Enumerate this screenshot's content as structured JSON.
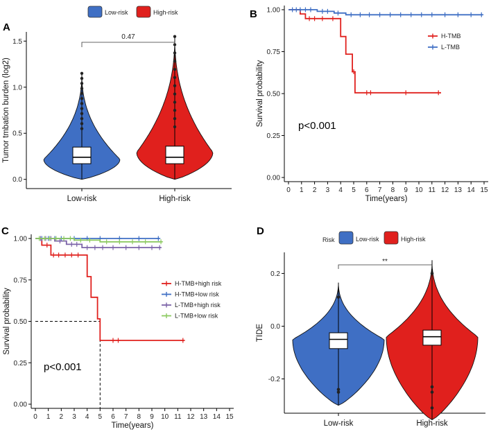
{
  "colors": {
    "low": "#3F6FC4",
    "high": "#E0201D",
    "purple": "#7B63A8",
    "green": "#8CC960"
  },
  "chart_data": [
    {
      "panel": "A",
      "type": "violin",
      "legend": [
        "Low-risk",
        "High-risk"
      ],
      "categories": [
        "Low-risk",
        "High-risk"
      ],
      "ylabel": "Tumor tmbation burden (log2)",
      "ylim": [
        -0.1,
        1.6
      ],
      "yticks": [
        "0.0",
        "0.5",
        "1.0",
        "1.5"
      ],
      "comparison_label": "0.47",
      "series": [
        {
          "name": "Low-risk",
          "median": 0.24,
          "q1": 0.17,
          "q3": 0.35,
          "whisker_low": 0.0,
          "whisker_high": 0.55,
          "min": 0.0,
          "max": 1.15
        },
        {
          "name": "High-risk",
          "median": 0.24,
          "q1": 0.17,
          "q3": 0.36,
          "whisker_low": 0.0,
          "whisker_high": 0.57,
          "min": 0.0,
          "max": 1.55
        }
      ]
    },
    {
      "panel": "B",
      "type": "line",
      "subtype": "kaplan-meier",
      "xlabel": "Time(years)",
      "ylabel": "Survival probability",
      "xticks": [
        "0",
        "1",
        "2",
        "3",
        "4",
        "5",
        "6",
        "7",
        "8",
        "9",
        "10",
        "11",
        "12",
        "13",
        "14",
        "15"
      ],
      "yticks": [
        "0.00",
        "0.25",
        "0.50",
        "0.75",
        "1.00"
      ],
      "xlim": [
        0,
        15
      ],
      "ylim": [
        0,
        1
      ],
      "p_value": "p<0.001",
      "series": [
        {
          "name": "H-TMB",
          "points": [
            [
              0,
              1.0
            ],
            [
              0.9,
              1.0
            ],
            [
              0.9,
              0.975
            ],
            [
              1.3,
              0.975
            ],
            [
              1.3,
              0.947
            ],
            [
              4.0,
              0.947
            ],
            [
              4.0,
              0.84
            ],
            [
              4.4,
              0.84
            ],
            [
              4.4,
              0.735
            ],
            [
              4.9,
              0.735
            ],
            [
              4.9,
              0.63
            ],
            [
              5.1,
              0.63
            ],
            [
              5.1,
              0.505
            ],
            [
              11.7,
              0.505
            ]
          ],
          "censors": [
            [
              1.6,
              0.947
            ],
            [
              2.0,
              0.947
            ],
            [
              2.6,
              0.947
            ],
            [
              3.4,
              0.947
            ],
            [
              5.0,
              0.63
            ],
            [
              6.0,
              0.505
            ],
            [
              6.3,
              0.505
            ],
            [
              9.0,
              0.505
            ],
            [
              11.5,
              0.505
            ]
          ]
        },
        {
          "name": "L-TMB",
          "points": [
            [
              0,
              1.0
            ],
            [
              2.2,
              1.0
            ],
            [
              2.2,
              0.99
            ],
            [
              3.5,
              0.99
            ],
            [
              3.5,
              0.98
            ],
            [
              4.4,
              0.98
            ],
            [
              4.4,
              0.97
            ],
            [
              14.9,
              0.97
            ]
          ],
          "censors": [
            [
              0.3,
              1.0
            ],
            [
              0.6,
              1.0
            ],
            [
              0.9,
              1.0
            ],
            [
              1.3,
              1.0
            ],
            [
              1.7,
              1.0
            ],
            [
              2.6,
              0.99
            ],
            [
              3.0,
              0.99
            ],
            [
              3.8,
              0.98
            ],
            [
              4.8,
              0.97
            ],
            [
              5.5,
              0.97
            ],
            [
              6.2,
              0.97
            ],
            [
              7.0,
              0.97
            ],
            [
              7.8,
              0.97
            ],
            [
              8.6,
              0.97
            ],
            [
              9.4,
              0.97
            ],
            [
              10.2,
              0.97
            ],
            [
              11.0,
              0.97
            ],
            [
              12.0,
              0.97
            ],
            [
              13.0,
              0.97
            ],
            [
              14.0,
              0.97
            ],
            [
              14.8,
              0.97
            ]
          ]
        }
      ]
    },
    {
      "panel": "C",
      "type": "line",
      "subtype": "kaplan-meier",
      "xlabel": "Time(years)",
      "ylabel": "Survival probability",
      "xticks": [
        "0",
        "1",
        "2",
        "3",
        "4",
        "5",
        "6",
        "7",
        "8",
        "9",
        "10",
        "11",
        "12",
        "13",
        "14",
        "15"
      ],
      "yticks": [
        "0.00",
        "0.25",
        "0.50",
        "0.75",
        "1.00"
      ],
      "xlim": [
        0,
        15
      ],
      "ylim": [
        0,
        1
      ],
      "p_value": "p<0.001",
      "median_marker": [
        5.0,
        0.5
      ],
      "series": [
        {
          "name": "H-TMB+high risk",
          "points": [
            [
              0,
              1.0
            ],
            [
              0.5,
              1.0
            ],
            [
              0.5,
              0.96
            ],
            [
              1.2,
              0.96
            ],
            [
              1.2,
              0.9
            ],
            [
              4.0,
              0.9
            ],
            [
              4.0,
              0.77
            ],
            [
              4.3,
              0.77
            ],
            [
              4.3,
              0.645
            ],
            [
              4.8,
              0.645
            ],
            [
              4.8,
              0.515
            ],
            [
              5.0,
              0.515
            ],
            [
              5.0,
              0.385
            ],
            [
              11.5,
              0.385
            ]
          ],
          "censors": [
            [
              0.9,
              0.96
            ],
            [
              1.4,
              0.9
            ],
            [
              1.8,
              0.9
            ],
            [
              2.3,
              0.9
            ],
            [
              2.8,
              0.9
            ],
            [
              3.3,
              0.9
            ],
            [
              6.0,
              0.385
            ],
            [
              6.4,
              0.385
            ],
            [
              11.4,
              0.385
            ]
          ]
        },
        {
          "name": "H-TMB+low risk",
          "points": [
            [
              0,
              1.0
            ],
            [
              9.6,
              1.0
            ]
          ],
          "censors": [
            [
              0.5,
              1.0
            ],
            [
              1.0,
              1.0
            ],
            [
              1.5,
              1.0
            ],
            [
              2.0,
              1.0
            ],
            [
              3.0,
              1.0
            ],
            [
              4.0,
              1.0
            ],
            [
              5.0,
              1.0
            ],
            [
              6.5,
              1.0
            ],
            [
              8.0,
              1.0
            ],
            [
              9.5,
              1.0
            ]
          ]
        },
        {
          "name": "L-TMB+high risk",
          "points": [
            [
              0,
              1.0
            ],
            [
              1.5,
              1.0
            ],
            [
              1.5,
              0.985
            ],
            [
              2.4,
              0.985
            ],
            [
              2.4,
              0.965
            ],
            [
              3.6,
              0.965
            ],
            [
              3.6,
              0.945
            ],
            [
              9.7,
              0.945
            ]
          ],
          "censors": [
            [
              0.4,
              1.0
            ],
            [
              0.8,
              1.0
            ],
            [
              1.2,
              1.0
            ],
            [
              1.9,
              0.985
            ],
            [
              2.8,
              0.965
            ],
            [
              3.2,
              0.965
            ],
            [
              4.0,
              0.945
            ],
            [
              4.6,
              0.945
            ],
            [
              5.2,
              0.945
            ],
            [
              6.0,
              0.945
            ],
            [
              7.0,
              0.945
            ],
            [
              8.0,
              0.945
            ],
            [
              9.0,
              0.945
            ],
            [
              9.6,
              0.945
            ]
          ]
        },
        {
          "name": "L-TMB+low risk",
          "points": [
            [
              0,
              1.0
            ],
            [
              3.0,
              1.0
            ],
            [
              3.0,
              0.99
            ],
            [
              5.0,
              0.99
            ],
            [
              5.0,
              0.98
            ],
            [
              9.8,
              0.98
            ]
          ],
          "censors": [
            [
              0.3,
              1.0
            ],
            [
              0.7,
              1.0
            ],
            [
              1.1,
              1.0
            ],
            [
              1.6,
              1.0
            ],
            [
              2.2,
              1.0
            ],
            [
              2.7,
              1.0
            ],
            [
              3.5,
              0.99
            ],
            [
              4.2,
              0.99
            ],
            [
              5.5,
              0.98
            ],
            [
              6.5,
              0.98
            ],
            [
              7.5,
              0.98
            ],
            [
              8.5,
              0.98
            ],
            [
              9.7,
              0.98
            ]
          ]
        }
      ]
    },
    {
      "panel": "D",
      "type": "violin",
      "legend_title": "Risk",
      "legend": [
        "Low-risk",
        "High-risk"
      ],
      "categories": [
        "Low-risk",
        "High-risk"
      ],
      "ylabel": "TIDE",
      "ylim": [
        -0.33,
        0.28
      ],
      "yticks": [
        "-0.2",
        "0.0",
        "0.2"
      ],
      "comparison_label": "**",
      "series": [
        {
          "name": "Low-risk",
          "median": -0.05,
          "q1": -0.085,
          "q3": -0.025,
          "whisker_low": -0.17,
          "whisker_high": 0.06,
          "min": -0.3,
          "max": 0.165,
          "outliers": [
            -0.24,
            -0.25,
            0.11
          ]
        },
        {
          "name": "High-risk",
          "median": -0.04,
          "q1": -0.072,
          "q3": -0.015,
          "whisker_low": -0.16,
          "whisker_high": 0.07,
          "min": -0.355,
          "max": 0.25,
          "outliers": [
            -0.23,
            -0.25,
            -0.31,
            0.2
          ]
        }
      ]
    }
  ]
}
